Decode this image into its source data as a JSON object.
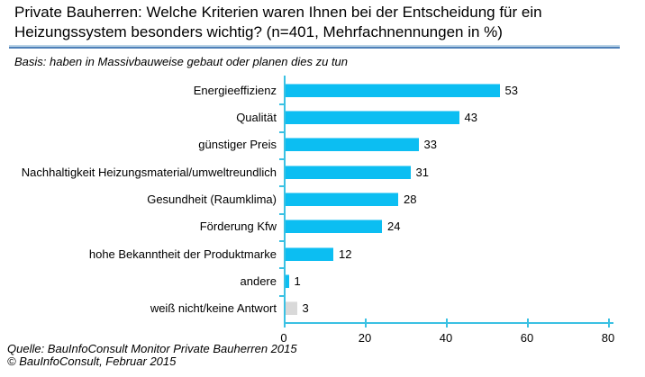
{
  "header": {
    "title": "Private Bauherren: Welche Kriterien waren Ihnen bei der Entscheidung für ein\nHeizungssystem besonders wichtig? (n=401, Mehrfachnennungen in %)",
    "basis_note": "Basis: haben in Massivbauweise gebaut oder planen dies zu tun"
  },
  "chart_data": {
    "type": "bar",
    "orientation": "horizontal",
    "title": "Private Bauherren: Welche Kriterien waren Ihnen bei der Entscheidung für ein Heizungssystem besonders wichtig? (n=401, Mehrfachnennungen in %)",
    "subtitle": "Basis: haben in Massivbauweise gebaut oder planen dies zu tun",
    "categories": [
      "Energieeffizienz",
      "Qualität",
      "günstiger Preis",
      "Nachhaltigkeit Heizungsmaterial/umweltreundlich",
      "Gesundheit (Raumklima)",
      "Förderung Kfw",
      "hohe Bekanntheit der Produktmarke",
      "andere",
      "weiß nicht/keine Antwort"
    ],
    "values": [
      53,
      43,
      33,
      31,
      28,
      24,
      12,
      1,
      3
    ],
    "bar_variants": [
      "default",
      "default",
      "default",
      "default",
      "default",
      "default",
      "default",
      "default",
      "muted"
    ],
    "xlabel": "",
    "ylabel": "",
    "xlim": [
      0,
      80
    ],
    "xticks": [
      0,
      20,
      40,
      60,
      80
    ],
    "grid": false,
    "legend": "none",
    "data_labels": true,
    "colors": {
      "bar": "#0cbef2",
      "bar_highlight": "#7ddaf7",
      "muted_bar": "#d9d9d9",
      "muted_bar_highlight": "#e9e9e9",
      "axis": "#3ac1e3",
      "title_rule_light": "#b9d3e6",
      "title_rule_dark": "#4e80b8"
    }
  },
  "footer": {
    "source_line1": "Quelle: BauInfoConsult Monitor Private Bauherren 2015",
    "source_line2": "© BauInfoConsult, Februar 2015"
  }
}
